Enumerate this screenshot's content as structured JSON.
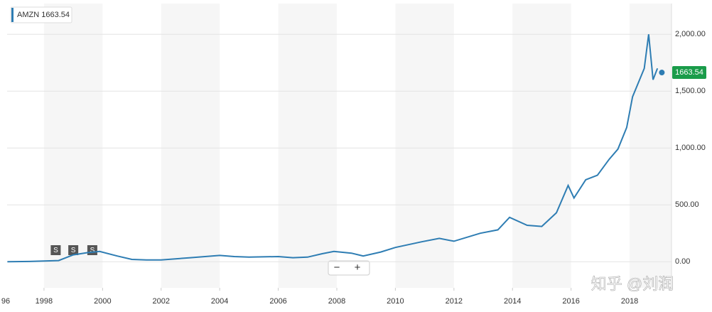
{
  "chart_data": {
    "type": "line",
    "legend_label": "AMZN 1663.54",
    "last_price_label": {
      "value": 1663.54,
      "label": "1663.54"
    },
    "series": [
      {
        "name": "AMZN",
        "color": "#2e7db3",
        "x": [
          1996.75,
          1997.5,
          1998.5,
          1999.0,
          1999.5,
          1999.9,
          2000.5,
          2001.0,
          2001.5,
          2002.0,
          2003.0,
          2004.0,
          2004.5,
          2005.0,
          2006.0,
          2006.5,
          2007.0,
          2007.5,
          2007.9,
          2008.5,
          2008.9,
          2009.5,
          2010.0,
          2010.9,
          2011.5,
          2012.0,
          2012.9,
          2013.5,
          2013.9,
          2014.5,
          2015.0,
          2015.5,
          2015.9,
          2016.1,
          2016.5,
          2016.9,
          2017.3,
          2017.6,
          2017.9,
          2018.1,
          2018.5,
          2018.65,
          2018.8,
          2018.95
        ],
        "values": [
          0,
          2,
          10,
          60,
          80,
          90,
          50,
          20,
          15,
          15,
          35,
          55,
          45,
          40,
          45,
          35,
          40,
          70,
          90,
          75,
          50,
          85,
          125,
          175,
          205,
          180,
          250,
          280,
          390,
          320,
          310,
          430,
          670,
          560,
          720,
          760,
          900,
          990,
          1180,
          1450,
          1700,
          2000,
          1600,
          1700
        ]
      }
    ],
    "last_point": {
      "x": 2019.1,
      "value": 1663.54
    },
    "splits": {
      "x": [
        1998.4,
        1999.0,
        1999.65
      ],
      "label": "S"
    },
    "xlim": [
      1996.74,
      2019.43
    ],
    "ylim": [
      -230,
      2270
    ],
    "xticks": [
      {
        "value": 1996,
        "label": "96"
      },
      1998,
      2000,
      2002,
      2004,
      2006,
      2008,
      2010,
      2012,
      2014,
      2016,
      2018
    ],
    "yticks": [
      {
        "value": 0,
        "label": "0.00"
      },
      {
        "value": 500,
        "label": "500.00"
      },
      {
        "value": 1000,
        "label": "1,000.00"
      },
      {
        "value": 1500,
        "label": "1,500.00"
      },
      {
        "value": 2000,
        "label": "2,000.00"
      }
    ],
    "grid": true,
    "zoom_out": "−",
    "zoom_in": "+",
    "watermark": "知乎 @刘润"
  }
}
